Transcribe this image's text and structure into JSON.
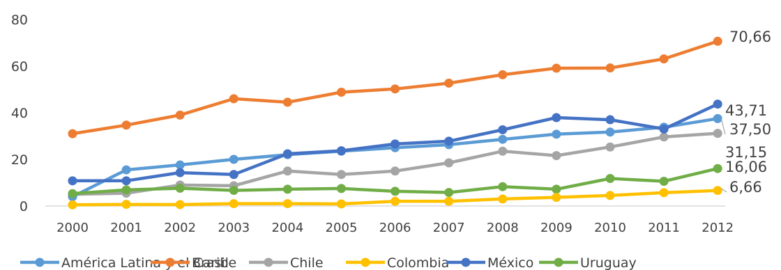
{
  "chart_data": {
    "type": "line",
    "title": "",
    "xlabel": "",
    "ylabel": "",
    "x": [
      "2000",
      "2001",
      "2002",
      "2003",
      "2004",
      "2005",
      "2006",
      "2007",
      "2008",
      "2009",
      "2010",
      "2011",
      "2012"
    ],
    "ylim": [
      0,
      80
    ],
    "yticks": [
      "0",
      "20",
      "40",
      "60",
      "80"
    ],
    "grid": false,
    "legend_position": "bottom",
    "series": [
      {
        "name": "América Latina y el Caribe",
        "color": "#5B9BD5",
        "values": [
          4.0,
          15.5,
          17.6,
          20.0,
          22.0,
          23.5,
          25.0,
          26.3,
          28.6,
          30.8,
          31.7,
          33.8,
          37.5
        ],
        "end_label": "37,50"
      },
      {
        "name": "Brasil",
        "color": "#ED7D31",
        "values": [
          31.0,
          34.7,
          39.0,
          46.0,
          44.5,
          48.8,
          50.2,
          52.7,
          56.3,
          59.1,
          59.2,
          63.1,
          70.66
        ],
        "end_label": "70,66"
      },
      {
        "name": "Chile",
        "color": "#A5A5A5",
        "values": [
          5.0,
          5.5,
          9.0,
          8.7,
          15.0,
          13.5,
          15.0,
          18.5,
          23.5,
          21.6,
          25.3,
          29.6,
          31.15
        ],
        "end_label": "31,15"
      },
      {
        "name": "Colombia",
        "color": "#FFC000",
        "values": [
          0.5,
          0.7,
          0.6,
          1.0,
          1.0,
          0.9,
          2.0,
          2.0,
          3.0,
          3.7,
          4.5,
          5.7,
          6.66
        ],
        "end_label": "6,66"
      },
      {
        "name": "México",
        "color": "#4472C4",
        "values": [
          10.8,
          10.8,
          14.3,
          13.5,
          22.4,
          23.7,
          26.6,
          27.8,
          32.7,
          37.9,
          37.0,
          33.0,
          43.71
        ],
        "end_label": "43,71"
      },
      {
        "name": "Uruguay",
        "color": "#70AD47",
        "values": [
          5.3,
          6.9,
          7.6,
          6.7,
          7.2,
          7.5,
          6.3,
          5.8,
          8.3,
          7.2,
          11.8,
          10.6,
          16.06
        ],
        "end_label": "16,06"
      }
    ]
  }
}
